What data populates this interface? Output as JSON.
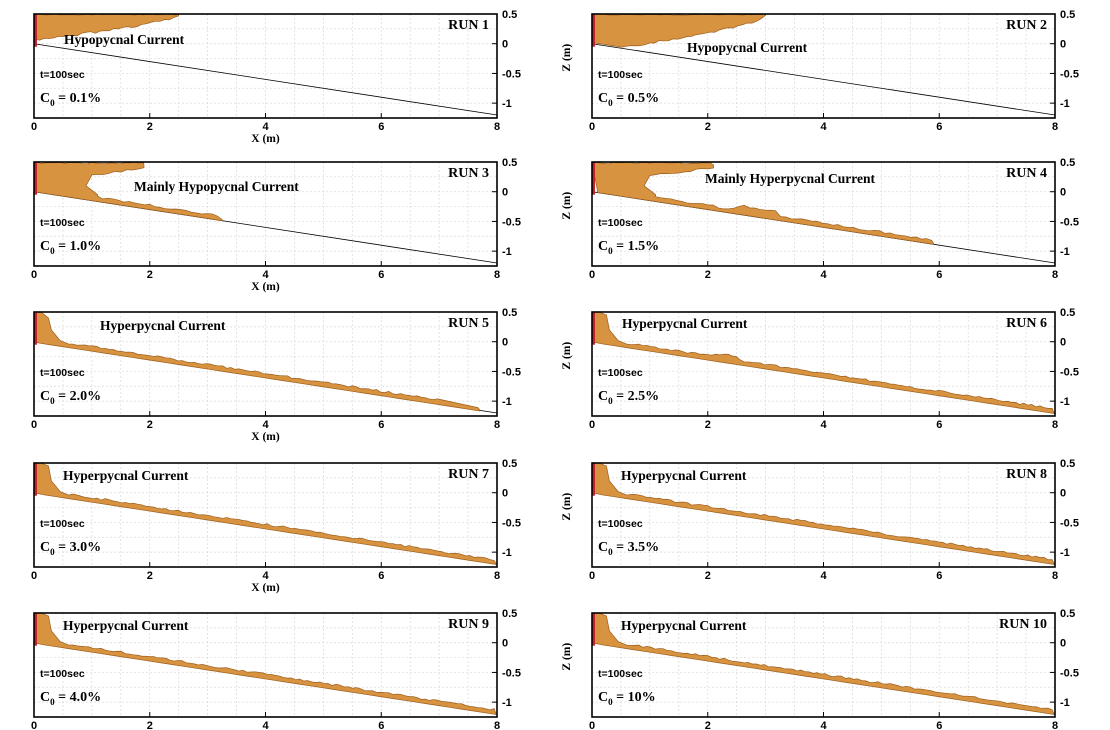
{
  "chart_data": [
    {
      "type": "area",
      "run": "RUN 1",
      "regime": "Hypopycnal Current",
      "time_label": "t=100sec",
      "conc_prefix": "C",
      "conc_sub": "0",
      "conc_value": " = 0.1%",
      "xlabel": "X (m)",
      "ylabel": "Z (m)",
      "xlim": [
        0,
        8
      ],
      "ylim": [
        -1.25,
        0.5
      ],
      "xticks": [
        0,
        2,
        4,
        6,
        8
      ],
      "yticks": [
        0.5,
        0,
        -0.5,
        -1
      ],
      "slope_line": {
        "x": [
          0,
          8
        ],
        "z": [
          0,
          -1.2
        ]
      },
      "current_extent_m": 2.5,
      "current_type": "surface",
      "show_xlabel": true,
      "show_ylabel": false,
      "colors": {
        "current": "#d89341",
        "inlet": "#c8202a"
      }
    },
    {
      "type": "area",
      "run": "RUN 2",
      "regime": "Hypopycnal Current",
      "time_label": "t=100sec",
      "conc_prefix": "C",
      "conc_sub": "0",
      "conc_value": " = 0.5%",
      "xlabel": "X (m)",
      "ylabel": "Z (m)",
      "xlim": [
        0,
        8
      ],
      "ylim": [
        -1.25,
        0.5
      ],
      "xticks": [
        0,
        2,
        4,
        6,
        8
      ],
      "yticks": [
        0.5,
        0,
        -0.5,
        -1
      ],
      "slope_line": {
        "x": [
          0,
          8
        ],
        "z": [
          0,
          -1.2
        ]
      },
      "current_extent_m": 3.0,
      "current_type": "surface",
      "show_xlabel": false,
      "show_ylabel": true,
      "colors": {
        "current": "#d89341",
        "inlet": "#c8202a"
      }
    },
    {
      "type": "area",
      "run": "RUN 3",
      "regime": "Mainly Hypopycnal Current",
      "time_label": "t=100sec",
      "conc_prefix": "C",
      "conc_sub": "0",
      "conc_value": " = 1.0%",
      "xlabel": "X (m)",
      "ylabel": "Z (m)",
      "xlim": [
        0,
        8
      ],
      "ylim": [
        -1.25,
        0.5
      ],
      "xticks": [
        0,
        2,
        4,
        6,
        8
      ],
      "yticks": [
        0.5,
        0,
        -0.5,
        -1
      ],
      "slope_line": {
        "x": [
          0,
          8
        ],
        "z": [
          0,
          -1.2
        ]
      },
      "current_extent_m": 3.25,
      "current_type": "mixed",
      "show_xlabel": true,
      "show_ylabel": false,
      "colors": {
        "current": "#d89341",
        "inlet": "#c8202a"
      }
    },
    {
      "type": "area",
      "run": "RUN 4",
      "regime": "Mainly Hyperpycnal Current",
      "time_label": "t=100sec",
      "conc_prefix": "C",
      "conc_sub": "0",
      "conc_value": " = 1.5%",
      "xlabel": "X (m)",
      "ylabel": "Z (m)",
      "xlim": [
        0,
        8
      ],
      "ylim": [
        -1.25,
        0.5
      ],
      "xticks": [
        0,
        2,
        4,
        6,
        8
      ],
      "yticks": [
        0.5,
        0,
        -0.5,
        -1
      ],
      "slope_line": {
        "x": [
          0,
          8
        ],
        "z": [
          0,
          -1.2
        ]
      },
      "current_extent_m": 5.9,
      "current_type": "mixed",
      "show_xlabel": false,
      "show_ylabel": true,
      "colors": {
        "current": "#d89341",
        "inlet": "#c8202a"
      }
    },
    {
      "type": "area",
      "run": "RUN 5",
      "regime": "Hyperpycnal Current",
      "time_label": "t=100sec",
      "conc_prefix": "C",
      "conc_sub": "0",
      "conc_value": " = 2.0%",
      "xlabel": "X (m)",
      "ylabel": "Z (m)",
      "xlim": [
        0,
        8
      ],
      "ylim": [
        -1.25,
        0.5
      ],
      "xticks": [
        0,
        2,
        4,
        6,
        8
      ],
      "yticks": [
        0.5,
        0,
        -0.5,
        -1
      ],
      "slope_line": {
        "x": [
          0,
          8
        ],
        "z": [
          0,
          -1.2
        ]
      },
      "current_extent_m": 7.7,
      "current_type": "bottom",
      "show_xlabel": true,
      "show_ylabel": false,
      "colors": {
        "current": "#d89341",
        "inlet": "#c8202a"
      }
    },
    {
      "type": "area",
      "run": "RUN 6",
      "regime": "Hyperpycnal Current",
      "time_label": "t=100sec",
      "conc_prefix": "C",
      "conc_sub": "0",
      "conc_value": " = 2.5%",
      "xlabel": "X (m)",
      "ylabel": "Z (m)",
      "xlim": [
        0,
        8
      ],
      "ylim": [
        -1.25,
        0.5
      ],
      "xticks": [
        0,
        2,
        4,
        6,
        8
      ],
      "yticks": [
        0.5,
        0,
        -0.5,
        -1
      ],
      "slope_line": {
        "x": [
          0,
          8
        ],
        "z": [
          0,
          -1.2
        ]
      },
      "current_extent_m": 8.0,
      "current_type": "bottom",
      "show_xlabel": false,
      "show_ylabel": true,
      "colors": {
        "current": "#d89341",
        "inlet": "#c8202a"
      }
    },
    {
      "type": "area",
      "run": "RUN 7",
      "regime": "Hyperpycnal Current",
      "time_label": "t=100sec",
      "conc_prefix": "C",
      "conc_sub": "0",
      "conc_value": " = 3.0%",
      "xlabel": "X (m)",
      "ylabel": "Z (m)",
      "xlim": [
        0,
        8
      ],
      "ylim": [
        -1.25,
        0.5
      ],
      "xticks": [
        0,
        2,
        4,
        6,
        8
      ],
      "yticks": [
        0.5,
        0,
        -0.5,
        -1
      ],
      "slope_line": {
        "x": [
          0,
          8
        ],
        "z": [
          0,
          -1.2
        ]
      },
      "current_extent_m": 8.0,
      "current_type": "bottom",
      "show_xlabel": true,
      "show_ylabel": false,
      "colors": {
        "current": "#d89341",
        "inlet": "#c8202a"
      }
    },
    {
      "type": "area",
      "run": "RUN 8",
      "regime": "Hyperpycnal Current",
      "time_label": "t=100sec",
      "conc_prefix": "C",
      "conc_sub": "0",
      "conc_value": " = 3.5%",
      "xlabel": "X (m)",
      "ylabel": "Z (m)",
      "xlim": [
        0,
        8
      ],
      "ylim": [
        -1.25,
        0.5
      ],
      "xticks": [
        0,
        2,
        4,
        6,
        8
      ],
      "yticks": [
        0.5,
        0,
        -0.5,
        -1
      ],
      "slope_line": {
        "x": [
          0,
          8
        ],
        "z": [
          0,
          -1.2
        ]
      },
      "current_extent_m": 8.0,
      "current_type": "bottom",
      "show_xlabel": false,
      "show_ylabel": true,
      "colors": {
        "current": "#d89341",
        "inlet": "#c8202a"
      }
    },
    {
      "type": "area",
      "run": "RUN 9",
      "regime": "Hyperpycnal Current",
      "time_label": "t=100sec",
      "conc_prefix": "C",
      "conc_sub": "0",
      "conc_value": " = 4.0%",
      "xlabel": "X (m)",
      "ylabel": "Z (m)",
      "xlim": [
        0,
        8
      ],
      "ylim": [
        -1.25,
        0.5
      ],
      "xticks": [
        0,
        2,
        4,
        6,
        8
      ],
      "yticks": [
        0.5,
        0,
        -0.5,
        -1
      ],
      "slope_line": {
        "x": [
          0,
          8
        ],
        "z": [
          0,
          -1.2
        ]
      },
      "current_extent_m": 8.0,
      "current_type": "bottom",
      "show_xlabel": false,
      "show_ylabel": false,
      "colors": {
        "current": "#d89341",
        "inlet": "#c8202a"
      }
    },
    {
      "type": "area",
      "run": "RUN 10",
      "regime": "Hyperpycnal Current",
      "time_label": "t=100sec",
      "conc_prefix": "C",
      "conc_sub": "0",
      "conc_value": " = 10%",
      "xlabel": "X (m)",
      "ylabel": "Z (m)",
      "xlim": [
        0,
        8
      ],
      "ylim": [
        -1.25,
        0.5
      ],
      "xticks": [
        0,
        2,
        4,
        6,
        8
      ],
      "yticks": [
        0.5,
        0,
        -0.5,
        -1
      ],
      "slope_line": {
        "x": [
          0,
          8
        ],
        "z": [
          0,
          -1.2
        ]
      },
      "current_extent_m": 8.0,
      "current_type": "bottom",
      "show_xlabel": false,
      "show_ylabel": true,
      "colors": {
        "current": "#d89341",
        "inlet": "#c8202a"
      }
    }
  ]
}
